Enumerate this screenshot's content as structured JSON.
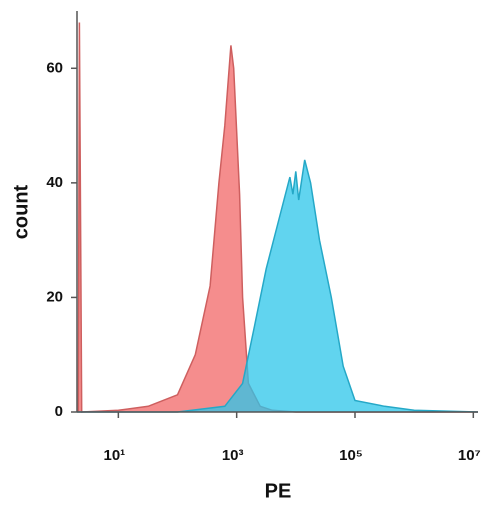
{
  "chart_data": {
    "type": "area",
    "x_label": "PE",
    "y_label": "count",
    "log_x": true,
    "xlim": [
      2,
      12000000
    ],
    "ylim": [
      0,
      70
    ],
    "xticks": [
      {
        "value": 10,
        "label": "10¹"
      },
      {
        "value": 1000,
        "label": "10³"
      },
      {
        "value": 100000,
        "label": "10⁵"
      },
      {
        "value": 10000000,
        "label": "10⁷"
      }
    ],
    "yticks": [
      0,
      20,
      40,
      60
    ],
    "series": [
      {
        "color": "#f27070",
        "x": [
          2.1,
          2.2,
          2.4,
          10,
          32,
          100,
          200,
          355,
          500,
          630,
          800,
          890,
          1120,
          1260,
          1580,
          2500,
          4000,
          10000,
          12000000
        ],
        "values": [
          0,
          68,
          0,
          0.3,
          1,
          3,
          10,
          22,
          40,
          50,
          64,
          60,
          38,
          20,
          5,
          1,
          0.3,
          0,
          0
        ]
      },
      {
        "color": "#2cc6ea",
        "x": [
          2,
          100,
          630,
          1260,
          2000,
          3160,
          5000,
          7940,
          8910,
          10000,
          11200,
          14100,
          17800,
          25100,
          39800,
          63100,
          100000,
          316000,
          1000000,
          12000000
        ],
        "values": [
          0,
          0,
          1,
          5,
          15,
          25,
          33,
          41,
          38,
          42,
          37,
          44,
          40,
          30,
          20,
          8,
          2,
          1,
          0.3,
          0
        ]
      }
    ]
  }
}
